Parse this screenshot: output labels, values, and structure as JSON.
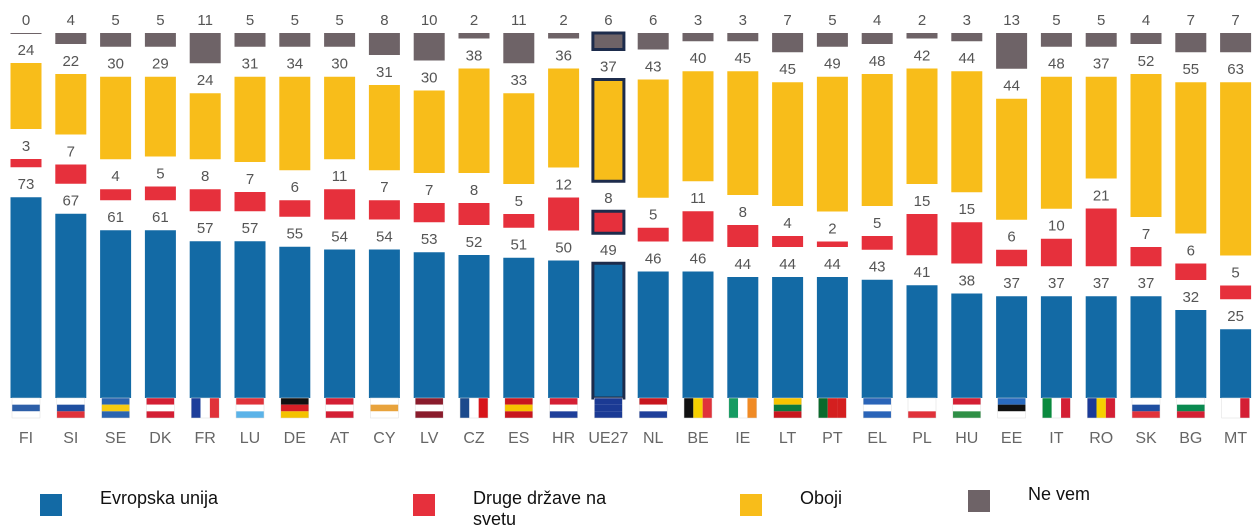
{
  "chart_data": {
    "type": "stacked_bar",
    "categories": [
      "FI",
      "SI",
      "SE",
      "DK",
      "FR",
      "LU",
      "DE",
      "AT",
      "CY",
      "LV",
      "CZ",
      "ES",
      "HR",
      "UE27",
      "NL",
      "BE",
      "IE",
      "LT",
      "PT",
      "EL",
      "PL",
      "HU",
      "EE",
      "IT",
      "RO",
      "SK",
      "BG",
      "MT"
    ],
    "ylim": [
      0,
      100
    ],
    "series": [
      {
        "name": "Evropska unija",
        "color": "#136aa5",
        "values": [
          73,
          67,
          61,
          61,
          57,
          57,
          55,
          54,
          54,
          53,
          52,
          51,
          50,
          49,
          46,
          46,
          44,
          44,
          44,
          43,
          41,
          38,
          37,
          37,
          37,
          37,
          32,
          25
        ]
      },
      {
        "name": "Druge države na svetu",
        "color": "#e6303c",
        "values": [
          3,
          7,
          4,
          5,
          8,
          7,
          6,
          11,
          7,
          7,
          8,
          5,
          12,
          8,
          5,
          11,
          8,
          4,
          2,
          5,
          15,
          15,
          6,
          10,
          21,
          7,
          6,
          5
        ]
      },
      {
        "name": "Oboji",
        "color": "#f8bd1a",
        "values": [
          24,
          22,
          30,
          29,
          24,
          31,
          34,
          30,
          31,
          30,
          38,
          33,
          36,
          37,
          43,
          40,
          45,
          45,
          49,
          48,
          42,
          44,
          44,
          48,
          37,
          52,
          55,
          63
        ]
      },
      {
        "name": "Ne vem",
        "color": "#6e6367",
        "values": [
          0,
          4,
          5,
          5,
          11,
          5,
          5,
          5,
          8,
          10,
          2,
          11,
          2,
          6,
          6,
          3,
          3,
          7,
          5,
          4,
          2,
          3,
          13,
          5,
          5,
          4,
          7,
          7
        ]
      }
    ],
    "highlight": "UE27"
  }
}
